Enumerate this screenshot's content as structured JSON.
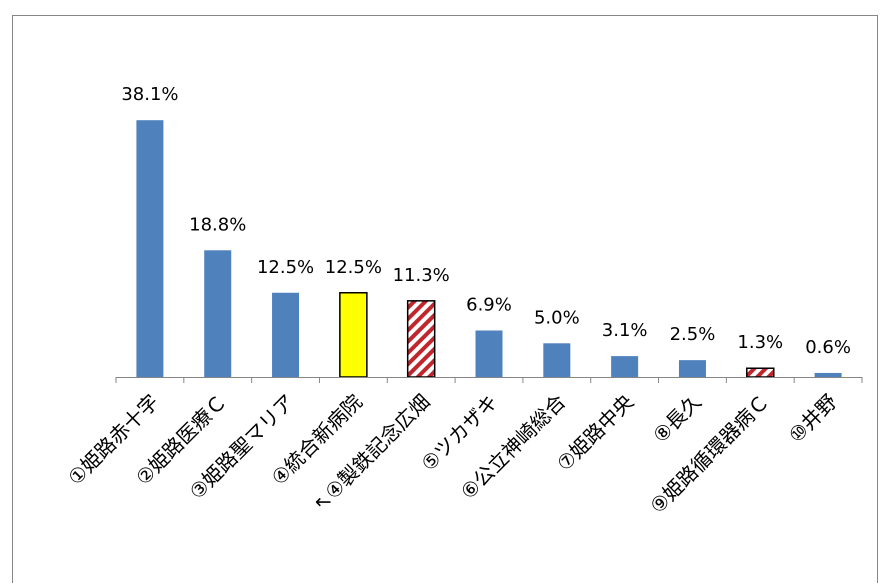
{
  "chart_data": {
    "type": "bar",
    "title": "",
    "xlabel": "",
    "ylabel": "",
    "ylim": [
      0,
      45
    ],
    "grid": false,
    "legend": "none",
    "categories": [
      "①姫路赤十字",
      "②姫路医療Ｃ",
      "③姫路聖マリア",
      "④統合新病院",
      "↖④製鉄記念広畑",
      "⑤ツカザキ",
      "⑥公立神崎総合",
      "⑦姫路中央",
      "⑧長久",
      "⑨姫路循環器病Ｃ",
      "⑩井野"
    ],
    "values": [
      38.1,
      18.8,
      12.5,
      12.5,
      11.3,
      6.9,
      5.0,
      3.1,
      2.5,
      1.3,
      0.6
    ],
    "value_labels": [
      "38.1%",
      "18.8%",
      "12.5%",
      "12.5%",
      "11.3%",
      "6.9%",
      "5.0%",
      "3.1%",
      "2.5%",
      "1.3%",
      "0.6%"
    ],
    "bar_styles": [
      "solid",
      "solid",
      "solid",
      "highlight",
      "hatched",
      "solid",
      "solid",
      "solid",
      "solid",
      "hatched",
      "solid"
    ],
    "colors": {
      "bar": "#4F81BD",
      "highlight": "#FFFF00",
      "hatch": "#C0272D",
      "axis": "#868686",
      "frame": "#868686",
      "text": "#000000"
    }
  }
}
